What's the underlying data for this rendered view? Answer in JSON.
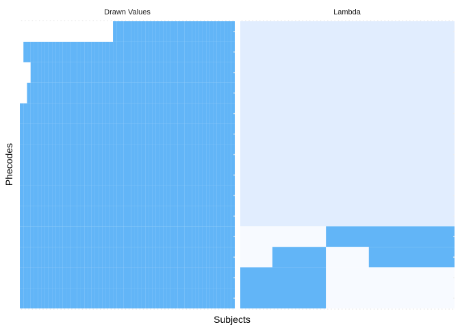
{
  "chart_data": {
    "type": "heatmap",
    "xlabel": "Subjects",
    "ylabel": "Phecodes",
    "grid": false,
    "legend": "none",
    "colors": {
      "filled": "#62b5f7",
      "empty": "#ffffff",
      "lambda_high": "#62b5f7",
      "lambda_mid": "#e1edfe",
      "lambda_low": "#f7faff",
      "dots": "#ececec",
      "text": "#1a1a1a"
    },
    "panels": [
      {
        "title": "Drawn Values",
        "n_subjects": 60,
        "n_phecodes": 14,
        "cells": [
          [
            26,
            27,
            28,
            29,
            30,
            31,
            32,
            33,
            34,
            35,
            36,
            37,
            38,
            39,
            40,
            41,
            42,
            43,
            44,
            45,
            46,
            47,
            48,
            49,
            50,
            51,
            52,
            53,
            54,
            55,
            56,
            57,
            58,
            59
          ],
          [
            1,
            2,
            3,
            4,
            5,
            6,
            7,
            8,
            9,
            10,
            11,
            12,
            13,
            14,
            15,
            16,
            17,
            18,
            19,
            20,
            21,
            22,
            23,
            24,
            25,
            26,
            27,
            28,
            29,
            30,
            31,
            32,
            33,
            34,
            35,
            36,
            37,
            38,
            39,
            40,
            41,
            42,
            43,
            44,
            45,
            46,
            47,
            48,
            49,
            50,
            51,
            52,
            53,
            54,
            55,
            56,
            57,
            58,
            59
          ],
          [
            3,
            4,
            5,
            6,
            7,
            8,
            9,
            10,
            11,
            12,
            13,
            14,
            15,
            16,
            17,
            18,
            19,
            20,
            21,
            22,
            23,
            24,
            25,
            26,
            27,
            28,
            29,
            30,
            31,
            32,
            33,
            34,
            35,
            36,
            37,
            38,
            39,
            40,
            41,
            42,
            43,
            44,
            45,
            46,
            47,
            48,
            49,
            50,
            51,
            52,
            53,
            54,
            55,
            56,
            57,
            58,
            59
          ],
          [
            2,
            3,
            4,
            5,
            6,
            7,
            8,
            9,
            10,
            11,
            12,
            13,
            14,
            15,
            16,
            17,
            18,
            19,
            20,
            21,
            22,
            23,
            24,
            25,
            26,
            27,
            28,
            29,
            30,
            31,
            32,
            33,
            34,
            35,
            36,
            37,
            38,
            39,
            40,
            41,
            42,
            43,
            44,
            45,
            46,
            47,
            48,
            49,
            50,
            51,
            52,
            53,
            54,
            55,
            56,
            57,
            58,
            59
          ],
          [
            0,
            1,
            2,
            3,
            4,
            5,
            6,
            7,
            8,
            9,
            10,
            11,
            12,
            13,
            14,
            15,
            16,
            17,
            18,
            19,
            20,
            21,
            22,
            23,
            24,
            25,
            26,
            27,
            28,
            29,
            30,
            31,
            32,
            33,
            34,
            35,
            36,
            37,
            38,
            39,
            40,
            41,
            42,
            43,
            44,
            45,
            46,
            47,
            48,
            49,
            50,
            51,
            52,
            53,
            54,
            55,
            56,
            57,
            58,
            59
          ],
          [
            0,
            1,
            2,
            3,
            4,
            5,
            6,
            7,
            8,
            9,
            10,
            11,
            12,
            13,
            14,
            15,
            16,
            17,
            18,
            19,
            20,
            21,
            22,
            23,
            24,
            25,
            26,
            27,
            28,
            29,
            30,
            31,
            32,
            33,
            34,
            35,
            36,
            37,
            38,
            39,
            40,
            41,
            42,
            43,
            44,
            45,
            46,
            47,
            48,
            49,
            50,
            51,
            52,
            53,
            54,
            55,
            56,
            57,
            58,
            59
          ],
          [
            0,
            1,
            2,
            3,
            4,
            5,
            6,
            7,
            8,
            9,
            10,
            11,
            12,
            13,
            14,
            15,
            16,
            17,
            18,
            19,
            20,
            21,
            22,
            23,
            24,
            25,
            26,
            27,
            28,
            29,
            30,
            31,
            32,
            33,
            34,
            35,
            36,
            37,
            38,
            39,
            40,
            41,
            42,
            43,
            44,
            45,
            46,
            47,
            48,
            49,
            50,
            51,
            52,
            53,
            54,
            55,
            56,
            57,
            58,
            59
          ],
          [
            0,
            1,
            2,
            3,
            4,
            5,
            6,
            7,
            8,
            9,
            10,
            11,
            12,
            13,
            14,
            15,
            16,
            17,
            18,
            19,
            20,
            21,
            22,
            23,
            24,
            25,
            26,
            27,
            28,
            29,
            30,
            31,
            32,
            33,
            34,
            35,
            36,
            37,
            38,
            39,
            40,
            41,
            42,
            43,
            44,
            45,
            46,
            47,
            48,
            49,
            50,
            51,
            52,
            53,
            54,
            55,
            56,
            57,
            58,
            59
          ],
          [
            0,
            1,
            2,
            3,
            4,
            5,
            6,
            7,
            8,
            9,
            10,
            11,
            12,
            13,
            14,
            15,
            16,
            17,
            18,
            19,
            20,
            21,
            22,
            23,
            24,
            25,
            26,
            27,
            28,
            29,
            30,
            31,
            32,
            33,
            34,
            35,
            36,
            37,
            38,
            39,
            40,
            41,
            42,
            43,
            44,
            45,
            46,
            47,
            48,
            49,
            50,
            51,
            52,
            53,
            54,
            55,
            56,
            57,
            58,
            59
          ],
          [
            0,
            1,
            2,
            3,
            4,
            5,
            6,
            7,
            8,
            9,
            10,
            11,
            12,
            13,
            14,
            15,
            16,
            17,
            18,
            19,
            20,
            21,
            22,
            23,
            24,
            25,
            26,
            27,
            28,
            29,
            30,
            31,
            32,
            33,
            34,
            35,
            36,
            37,
            38,
            39,
            40,
            41,
            42,
            43,
            44,
            45,
            46,
            47,
            48,
            49,
            50,
            51,
            52,
            53,
            54,
            55,
            56,
            57,
            58,
            59
          ],
          [
            0,
            1,
            2,
            3,
            4,
            5,
            6,
            7,
            8,
            9,
            10,
            11,
            12,
            13,
            14,
            15,
            16,
            17,
            18,
            19,
            20,
            21,
            22,
            23,
            24,
            25,
            26,
            27,
            28,
            29,
            30,
            31,
            32,
            33,
            34,
            35,
            36,
            37,
            38,
            39,
            40,
            41,
            42,
            43,
            44,
            45,
            46,
            47,
            48,
            49,
            50,
            51,
            52,
            53,
            54,
            55,
            56,
            57,
            58,
            59
          ],
          [
            0,
            1,
            2,
            3,
            4,
            5,
            6,
            7,
            8,
            9,
            10,
            11,
            12,
            13,
            14,
            15,
            16,
            17,
            18,
            19,
            20,
            21,
            22,
            23,
            24,
            25,
            26,
            27,
            28,
            29,
            30,
            31,
            32,
            33,
            34,
            35,
            36,
            37,
            38,
            39,
            40,
            41,
            42,
            43,
            44,
            45,
            46,
            47,
            48,
            49,
            50,
            51,
            52,
            53,
            54,
            55,
            56,
            57,
            58,
            59
          ],
          [
            0,
            1,
            2,
            3,
            4,
            5,
            6,
            7,
            8,
            9,
            10,
            11,
            12,
            13,
            14,
            15,
            16,
            17,
            18,
            19,
            20,
            21,
            22,
            23,
            24,
            25,
            26,
            27,
            28,
            29,
            30,
            31,
            32,
            33,
            34,
            35,
            36,
            37,
            38,
            39,
            40,
            41,
            42,
            43,
            44,
            45,
            46,
            47,
            48,
            49,
            50,
            51,
            52,
            53,
            54,
            55,
            56,
            57,
            58,
            59
          ],
          [
            0,
            1,
            2,
            3,
            4,
            5,
            6,
            7,
            8,
            9,
            10,
            11,
            12,
            13,
            14,
            15,
            16,
            17,
            18,
            19,
            20,
            21,
            22,
            23,
            24,
            25,
            26,
            27,
            28,
            29,
            30,
            31,
            32,
            33,
            34,
            35,
            36,
            37,
            38,
            39,
            40,
            41,
            42,
            43,
            44,
            45,
            46,
            47,
            48,
            49,
            50,
            51,
            52,
            53,
            54,
            55,
            56,
            57,
            58,
            59
          ]
        ]
      },
      {
        "title": "Lambda",
        "blocks": [
          {
            "rows": [
              0,
              10
            ],
            "subjects": [
              0,
              60
            ],
            "level": "mid"
          },
          {
            "rows": [
              10,
              11
            ],
            "subjects": [
              0,
              24
            ],
            "level": "low"
          },
          {
            "rows": [
              10,
              11
            ],
            "subjects": [
              24,
              60
            ],
            "level": "high"
          },
          {
            "rows": [
              11,
              12
            ],
            "subjects": [
              0,
              9
            ],
            "level": "low"
          },
          {
            "rows": [
              11,
              12
            ],
            "subjects": [
              9,
              24
            ],
            "level": "high"
          },
          {
            "rows": [
              11,
              12
            ],
            "subjects": [
              24,
              36
            ],
            "level": "low"
          },
          {
            "rows": [
              11,
              12
            ],
            "subjects": [
              36,
              60
            ],
            "level": "high"
          },
          {
            "rows": [
              12,
              14
            ],
            "subjects": [
              0,
              24
            ],
            "level": "high"
          },
          {
            "rows": [
              12,
              14
            ],
            "subjects": [
              24,
              60
            ],
            "level": "low"
          }
        ]
      }
    ]
  }
}
